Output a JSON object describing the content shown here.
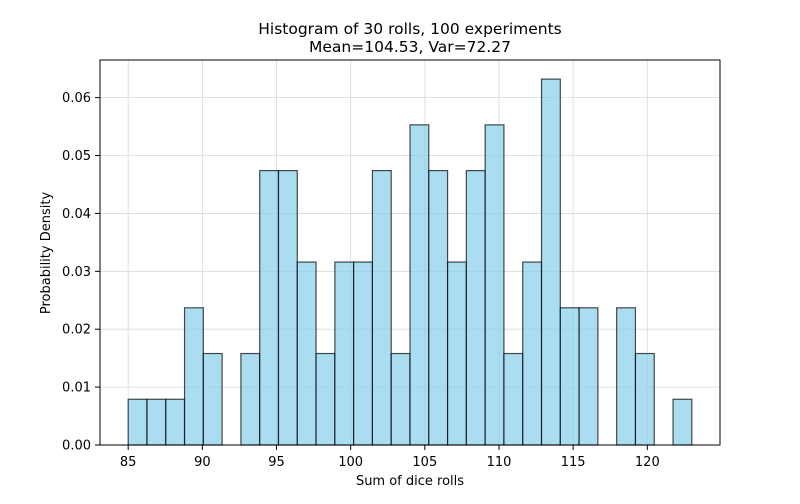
{
  "chart_data": {
    "type": "bar",
    "title_line1": "Histogram of 30 rolls, 100 experiments",
    "title_line2": "Mean=104.53, Var=72.27",
    "xlabel": "Sum of dice rolls",
    "ylabel": "Probability Density",
    "xlim": [
      83.1,
      124.9
    ],
    "ylim": [
      0,
      0.0665
    ],
    "xticks": [
      85,
      90,
      95,
      100,
      105,
      110,
      115,
      120
    ],
    "yticks": [
      0.0,
      0.01,
      0.02,
      0.03,
      0.04,
      0.05,
      0.06
    ],
    "ytick_labels": [
      "0.00",
      "0.01",
      "0.02",
      "0.03",
      "0.04",
      "0.05",
      "0.06"
    ],
    "bins": [
      {
        "x0": 85.0,
        "x1": 86.267,
        "density": 0.0079
      },
      {
        "x0": 86.267,
        "x1": 87.533,
        "density": 0.0079
      },
      {
        "x0": 87.533,
        "x1": 88.8,
        "density": 0.0079
      },
      {
        "x0": 88.8,
        "x1": 90.067,
        "density": 0.0237
      },
      {
        "x0": 90.067,
        "x1": 91.333,
        "density": 0.0158
      },
      {
        "x0": 91.333,
        "x1": 92.6,
        "density": 0.0
      },
      {
        "x0": 92.6,
        "x1": 93.867,
        "density": 0.0158
      },
      {
        "x0": 93.867,
        "x1": 95.133,
        "density": 0.0474
      },
      {
        "x0": 95.133,
        "x1": 96.4,
        "density": 0.0474
      },
      {
        "x0": 96.4,
        "x1": 97.667,
        "density": 0.0316
      },
      {
        "x0": 97.667,
        "x1": 98.933,
        "density": 0.0158
      },
      {
        "x0": 98.933,
        "x1": 100.2,
        "density": 0.0316
      },
      {
        "x0": 100.2,
        "x1": 101.467,
        "density": 0.0316
      },
      {
        "x0": 101.467,
        "x1": 102.733,
        "density": 0.0474
      },
      {
        "x0": 102.733,
        "x1": 104.0,
        "density": 0.0158
      },
      {
        "x0": 104.0,
        "x1": 105.267,
        "density": 0.0553
      },
      {
        "x0": 105.267,
        "x1": 106.533,
        "density": 0.0474
      },
      {
        "x0": 106.533,
        "x1": 107.8,
        "density": 0.0316
      },
      {
        "x0": 107.8,
        "x1": 109.067,
        "density": 0.0474
      },
      {
        "x0": 109.067,
        "x1": 110.333,
        "density": 0.0553
      },
      {
        "x0": 110.333,
        "x1": 111.6,
        "density": 0.0158
      },
      {
        "x0": 111.6,
        "x1": 112.867,
        "density": 0.0316
      },
      {
        "x0": 112.867,
        "x1": 114.133,
        "density": 0.0632
      },
      {
        "x0": 114.133,
        "x1": 115.4,
        "density": 0.0237
      },
      {
        "x0": 115.4,
        "x1": 116.667,
        "density": 0.0237
      },
      {
        "x0": 116.667,
        "x1": 117.933,
        "density": 0.0
      },
      {
        "x0": 117.933,
        "x1": 119.2,
        "density": 0.0237
      },
      {
        "x0": 119.2,
        "x1": 120.467,
        "density": 0.0158
      },
      {
        "x0": 120.467,
        "x1": 121.733,
        "density": 0.0
      },
      {
        "x0": 121.733,
        "x1": 123.0,
        "density": 0.0079
      }
    ],
    "grid": true,
    "colors": {
      "bar_fill": "#87ceeb",
      "bar_edge": "#000000",
      "grid": "#d9d9d9"
    }
  }
}
